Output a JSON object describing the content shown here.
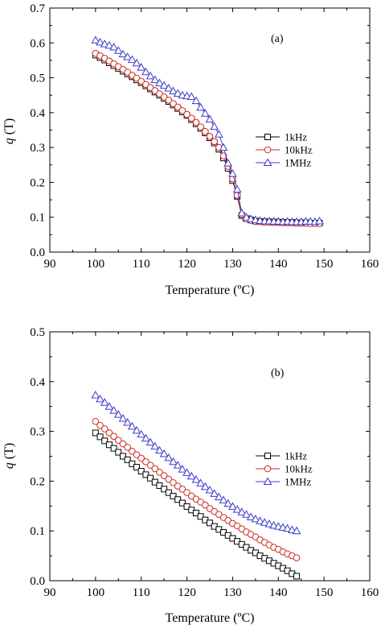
{
  "chart_data": [
    {
      "type": "line",
      "panel_label": "(a)",
      "xlabel": "Temperature (ºC)",
      "ylabel_var": "q",
      "ylabel_unit": " (T)",
      "xlim": [
        90,
        160
      ],
      "ylim": [
        0.0,
        0.7
      ],
      "xticks": [
        "90",
        "100",
        "110",
        "120",
        "130",
        "140",
        "150",
        "160"
      ],
      "yticks": [
        "0.0",
        "0.1",
        "0.2",
        "0.3",
        "0.4",
        "0.5",
        "0.6",
        "0.7"
      ],
      "legend_placement": "right",
      "grid": false,
      "series": [
        {
          "name": "1kHz",
          "marker": "square",
          "color": "#000000",
          "x": [
            100,
            101,
            102,
            103,
            104,
            105,
            106,
            107,
            108,
            109,
            110,
            111,
            112,
            113,
            114,
            115,
            116,
            117,
            118,
            119,
            120,
            121,
            122,
            123,
            124,
            125,
            126,
            127,
            128,
            129,
            130,
            131,
            132,
            133,
            134,
            135,
            136,
            137,
            138,
            139,
            140,
            141,
            142,
            143,
            144,
            145,
            146,
            147,
            148,
            149
          ],
          "y": [
            0.565,
            0.558,
            0.551,
            0.543,
            0.535,
            0.527,
            0.519,
            0.511,
            0.503,
            0.494,
            0.486,
            0.477,
            0.468,
            0.459,
            0.45,
            0.441,
            0.432,
            0.422,
            0.412,
            0.402,
            0.392,
            0.38,
            0.368,
            0.355,
            0.342,
            0.328,
            0.313,
            0.295,
            0.27,
            0.24,
            0.205,
            0.16,
            0.105,
            0.096,
            0.092,
            0.089,
            0.088,
            0.087,
            0.087,
            0.086,
            0.086,
            0.085,
            0.085,
            0.085,
            0.084,
            0.084,
            0.084,
            0.083,
            0.083,
            0.083
          ]
        },
        {
          "name": "10kHz",
          "marker": "circle",
          "color": "#cc2a1f",
          "x": [
            100,
            101,
            102,
            103,
            104,
            105,
            106,
            107,
            108,
            109,
            110,
            111,
            112,
            113,
            114,
            115,
            116,
            117,
            118,
            119,
            120,
            121,
            122,
            123,
            124,
            125,
            126,
            127,
            128,
            129,
            130,
            131,
            132,
            133,
            134,
            135,
            136,
            137,
            138,
            139,
            140,
            141,
            142,
            143,
            144,
            145,
            146,
            147,
            148,
            149
          ],
          "y": [
            0.57,
            0.563,
            0.556,
            0.548,
            0.54,
            0.532,
            0.524,
            0.516,
            0.507,
            0.499,
            0.49,
            0.481,
            0.472,
            0.463,
            0.454,
            0.445,
            0.436,
            0.426,
            0.416,
            0.406,
            0.395,
            0.384,
            0.372,
            0.359,
            0.346,
            0.332,
            0.317,
            0.3,
            0.276,
            0.246,
            0.21,
            0.163,
            0.108,
            0.095,
            0.091,
            0.088,
            0.087,
            0.086,
            0.086,
            0.085,
            0.085,
            0.084,
            0.084,
            0.084,
            0.083,
            0.083,
            0.083,
            0.082,
            0.082,
            0.082
          ]
        },
        {
          "name": "1MHz",
          "marker": "triangle",
          "color": "#3c3cc8",
          "x": [
            100,
            101,
            102,
            103,
            104,
            105,
            106,
            107,
            108,
            109,
            110,
            111,
            112,
            113,
            114,
            115,
            116,
            117,
            118,
            119,
            120,
            121,
            122,
            123,
            124,
            125,
            126,
            127,
            128,
            129,
            130,
            131,
            132,
            133,
            134,
            135,
            136,
            137,
            138,
            139,
            140,
            141,
            142,
            143,
            144,
            145,
            146,
            147,
            148,
            149
          ],
          "y": [
            0.608,
            0.602,
            0.597,
            0.593,
            0.588,
            0.578,
            0.568,
            0.56,
            0.552,
            0.542,
            0.53,
            0.517,
            0.505,
            0.494,
            0.485,
            0.478,
            0.47,
            0.462,
            0.455,
            0.45,
            0.448,
            0.446,
            0.434,
            0.415,
            0.398,
            0.381,
            0.36,
            0.338,
            0.3,
            0.255,
            0.225,
            0.18,
            0.112,
            0.1,
            0.095,
            0.092,
            0.09,
            0.089,
            0.089,
            0.088,
            0.088,
            0.087,
            0.088,
            0.087,
            0.087,
            0.087,
            0.088,
            0.088,
            0.087,
            0.089
          ]
        }
      ]
    },
    {
      "type": "line",
      "panel_label": "(b)",
      "xlabel": "Temperature (ºC)",
      "ylabel_var": "q",
      "ylabel_unit": " (T)",
      "xlim": [
        90,
        160
      ],
      "ylim": [
        0.0,
        0.5
      ],
      "xticks": [
        "90",
        "100",
        "110",
        "120",
        "130",
        "140",
        "150",
        "160"
      ],
      "yticks": [
        "0.0",
        "0.1",
        "0.2",
        "0.3",
        "0.4",
        "0.5"
      ],
      "legend_placement": "right",
      "grid": false,
      "series": [
        {
          "name": "1kHz",
          "marker": "square",
          "color": "#000000",
          "x": [
            100,
            101,
            102,
            103,
            104,
            105,
            106,
            107,
            108,
            109,
            110,
            111,
            112,
            113,
            114,
            115,
            116,
            117,
            118,
            119,
            120,
            121,
            122,
            123,
            124,
            125,
            126,
            127,
            128,
            129,
            130,
            131,
            132,
            133,
            134,
            135,
            136,
            137,
            138,
            139,
            140,
            141,
            142,
            143,
            144
          ],
          "y": [
            0.297,
            0.289,
            0.281,
            0.273,
            0.266,
            0.258,
            0.25,
            0.243,
            0.235,
            0.228,
            0.22,
            0.213,
            0.206,
            0.198,
            0.191,
            0.184,
            0.177,
            0.17,
            0.163,
            0.156,
            0.149,
            0.142,
            0.136,
            0.129,
            0.122,
            0.116,
            0.109,
            0.103,
            0.097,
            0.091,
            0.085,
            0.079,
            0.073,
            0.067,
            0.061,
            0.056,
            0.05,
            0.045,
            0.04,
            0.035,
            0.03,
            0.025,
            0.02,
            0.014,
            0.009
          ]
        },
        {
          "name": "10kHz",
          "marker": "circle",
          "color": "#cc2a1f",
          "x": [
            100,
            101,
            102,
            103,
            104,
            105,
            106,
            107,
            108,
            109,
            110,
            111,
            112,
            113,
            114,
            115,
            116,
            117,
            118,
            119,
            120,
            121,
            122,
            123,
            124,
            125,
            126,
            127,
            128,
            129,
            130,
            131,
            132,
            133,
            134,
            135,
            136,
            137,
            138,
            139,
            140,
            141,
            142,
            143,
            144
          ],
          "y": [
            0.32,
            0.312,
            0.305,
            0.297,
            0.29,
            0.282,
            0.275,
            0.268,
            0.26,
            0.253,
            0.246,
            0.239,
            0.232,
            0.225,
            0.218,
            0.211,
            0.204,
            0.197,
            0.19,
            0.184,
            0.177,
            0.17,
            0.164,
            0.158,
            0.152,
            0.145,
            0.139,
            0.133,
            0.127,
            0.121,
            0.115,
            0.11,
            0.104,
            0.098,
            0.093,
            0.088,
            0.082,
            0.077,
            0.072,
            0.067,
            0.063,
            0.058,
            0.054,
            0.05,
            0.046
          ]
        },
        {
          "name": "1MHz",
          "marker": "triangle",
          "color": "#3c3cc8",
          "x": [
            100,
            101,
            102,
            103,
            104,
            105,
            106,
            107,
            108,
            109,
            110,
            111,
            112,
            113,
            114,
            115,
            116,
            117,
            118,
            119,
            120,
            121,
            122,
            123,
            124,
            125,
            126,
            127,
            128,
            129,
            130,
            131,
            132,
            133,
            134,
            135,
            136,
            137,
            138,
            139,
            140,
            141,
            142,
            143,
            144
          ],
          "y": [
            0.373,
            0.365,
            0.358,
            0.35,
            0.342,
            0.334,
            0.326,
            0.318,
            0.31,
            0.302,
            0.294,
            0.286,
            0.278,
            0.27,
            0.262,
            0.255,
            0.247,
            0.239,
            0.232,
            0.224,
            0.217,
            0.21,
            0.203,
            0.196,
            0.189,
            0.182,
            0.175,
            0.168,
            0.162,
            0.155,
            0.149,
            0.143,
            0.138,
            0.133,
            0.128,
            0.124,
            0.12,
            0.117,
            0.114,
            0.111,
            0.109,
            0.107,
            0.105,
            0.102,
            0.1
          ]
        }
      ]
    }
  ]
}
